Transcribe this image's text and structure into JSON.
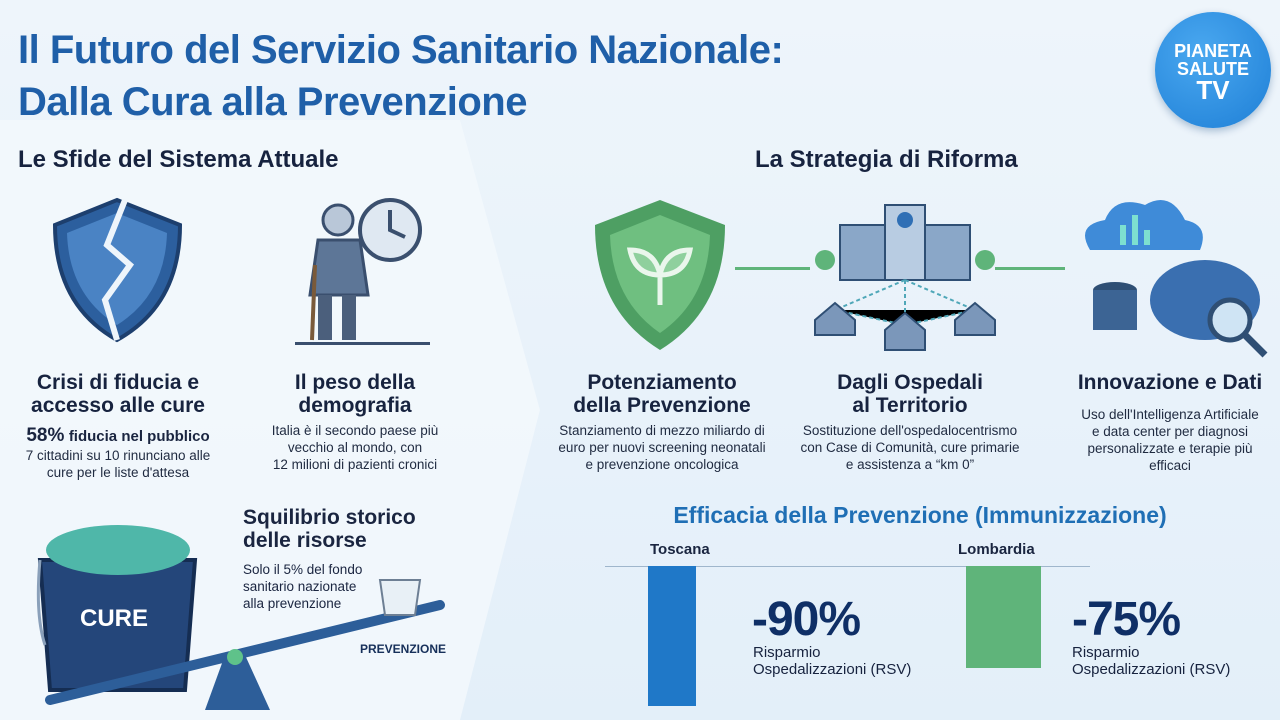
{
  "header": {
    "title_line1": "Il Futuro del Servizio Sanitario Nazionale:",
    "title_line2": "Dalla Cura alla Prevenzione",
    "logo": {
      "line1": "PIANETA",
      "line2": "SALUTE",
      "line3": "TV"
    }
  },
  "left": {
    "heading": "Le Sfide del Sistema Attuale",
    "card1": {
      "title_line1": "Crisi di fiducia e",
      "title_line2": "accesso alle cure",
      "stat": "58%",
      "stat_label": "fiducia nel pubblico",
      "text_line1": "7 cittadini su 10 rinunciano alle",
      "text_line2": "cure per le liste d'attesa",
      "icon": "broken-shield-icon"
    },
    "card2": {
      "title_line1": "Il peso della",
      "title_line2": "demografia",
      "text_line1": "Italia è il secondo paese più",
      "text_line2": "vecchio al mondo, con",
      "text_line3": "12 milioni di pazienti cronici",
      "icon": "elderly-clock-icon"
    },
    "card3": {
      "title_line1": "Squilibrio storico",
      "title_line2": "delle risorse",
      "text_line1": "Solo il 5% del fondo",
      "text_line2": "sanitario nazionate",
      "text_line3": "alla prevenzione",
      "bucket_label": "CURE",
      "small_bucket_label": "PREVENZIONE",
      "icon": "seesaw-bucket-icon"
    }
  },
  "right": {
    "heading": "La Strategia di Riforma",
    "cards": [
      {
        "title_line1": "Potenziamento",
        "title_line2": "della Prevenzione",
        "text_line1": "Stanziamento di mezzo miliardo di",
        "text_line2": "euro per nuovi screening neonatali",
        "text_line3": "e prevenzione oncologica",
        "icon": "green-shield-plant-icon"
      },
      {
        "title_line1": "Dagli Ospedali",
        "title_line2": "al Territorio",
        "text_line1": "Sostituzione dell'ospedalocentrismo",
        "text_line2": "con Case di Comunità, cure primarie",
        "text_line3": "e assistenza a “km 0”",
        "icon": "hospital-network-icon"
      },
      {
        "title_line1": "Innovazione e Dati",
        "title_line2": "",
        "text_line1": "Uso dell'Intelligenza Artificiale",
        "text_line2": "e data center per diagnosi",
        "text_line3": "personalizzate e terapie più",
        "text_line4": "efficaci",
        "icon": "cloud-brain-data-icon"
      }
    ]
  },
  "chart_data": {
    "type": "bar",
    "title": "Efficacia della Prevenzione (Immunizzazione)",
    "categories": [
      "Toscana",
      "Lombardia"
    ],
    "values": [
      -90,
      -75
    ],
    "value_labels": [
      "-90%",
      "-75%"
    ],
    "sublabel_line1": "Risparmio",
    "sublabel_line2": "Ospedalizzazioni (RSV)",
    "colors": [
      "#1f78c8",
      "#5fb47a"
    ]
  }
}
